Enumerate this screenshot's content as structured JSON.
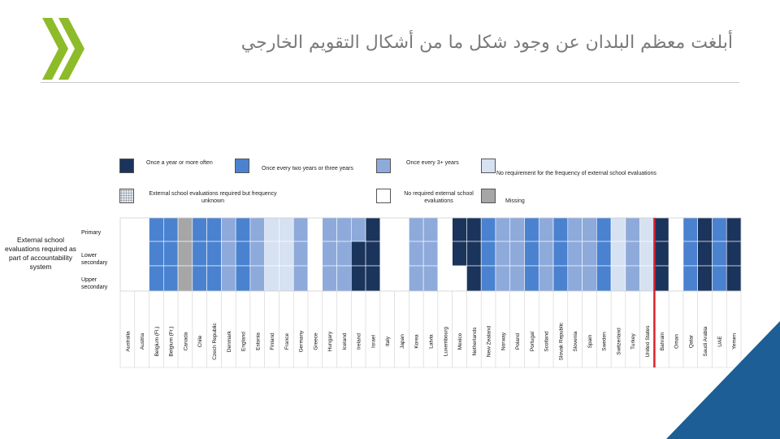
{
  "title": "أبلغت معظم البلدان عن وجود شكل ما من أشكال التقويم الخارجي",
  "colors": {
    "annual": "#1b345c",
    "two_three_years": "#4a82d0",
    "three_plus": "#8eaadb",
    "no_requirement": "#d6e1f2",
    "unknown": "#c8ccd4",
    "no_evaluation": "#ffffff",
    "missing": "#a6a6a6",
    "highlight_line": "#d9232e",
    "brand_green": "#8dbb2a",
    "brand_blue": "#1c5e95"
  },
  "legend": [
    {
      "key": "annual",
      "label": "Once a year or more often"
    },
    {
      "key": "two_three_years",
      "label": "Once every two years or three years"
    },
    {
      "key": "three_plus",
      "label": "Once every 3+ years"
    },
    {
      "key": "no_requirement",
      "label": "No requirement for the frequency of external school evaluations"
    },
    {
      "key": "unknown",
      "label": "External school evaluations required but frequency unknown"
    },
    {
      "key": "no_evaluation",
      "label": "No required external school evaluations"
    },
    {
      "key": "missing",
      "label": "Missing"
    }
  ],
  "side_label": "External school evaluations required as part of accountability system",
  "chart_data": {
    "type": "heatmap",
    "rows": [
      "Primary",
      "Lower secondary",
      "Upper secondary"
    ],
    "columns": [
      "Australia",
      "Austria",
      "Belgium (Fl.)",
      "Belgium (Fr.)",
      "Canada",
      "Chile",
      "Czech Republic",
      "Denmark",
      "England",
      "Estonia",
      "Finland",
      "France",
      "Germany",
      "Greece",
      "Hungary",
      "Iceland",
      "Ireland",
      "Israel",
      "Italy",
      "Japan",
      "Korea",
      "Latvia",
      "Luxembourg",
      "Mexico",
      "Netherlands",
      "New Zealand",
      "Norway",
      "Poland",
      "Portugal",
      "Scotland",
      "Slovak Republic",
      "Slovenia",
      "Spain",
      "Sweden",
      "Switzerland",
      "Turkey",
      "United States",
      "Bahrain",
      "Oman",
      "Qatar",
      "Saudi Arabia",
      "UAE",
      "Yemen"
    ],
    "values": [
      [
        "no_evaluation",
        "no_evaluation",
        "two_three_years",
        "two_three_years",
        "missing",
        "two_three_years",
        "two_three_years",
        "three_plus",
        "two_three_years",
        "three_plus",
        "no_requirement",
        "no_requirement",
        "three_plus",
        "no_evaluation",
        "three_plus",
        "three_plus",
        "three_plus",
        "annual",
        "no_evaluation",
        "no_evaluation",
        "three_plus",
        "three_plus",
        "no_evaluation",
        "annual",
        "annual",
        "two_three_years",
        "three_plus",
        "three_plus",
        "two_three_years",
        "three_plus",
        "two_three_years",
        "three_plus",
        "three_plus",
        "two_three_years",
        "no_requirement",
        "three_plus",
        "no_requirement",
        "annual",
        "no_evaluation",
        "two_three_years",
        "annual",
        "two_three_years",
        "annual"
      ],
      [
        "no_evaluation",
        "no_evaluation",
        "two_three_years",
        "two_three_years",
        "missing",
        "two_three_years",
        "two_three_years",
        "three_plus",
        "two_three_years",
        "three_plus",
        "no_requirement",
        "no_requirement",
        "three_plus",
        "no_evaluation",
        "three_plus",
        "three_plus",
        "annual",
        "annual",
        "no_evaluation",
        "no_evaluation",
        "three_plus",
        "three_plus",
        "no_evaluation",
        "annual",
        "annual",
        "two_three_years",
        "three_plus",
        "three_plus",
        "two_three_years",
        "three_plus",
        "two_three_years",
        "three_plus",
        "three_plus",
        "two_three_years",
        "no_requirement",
        "three_plus",
        "no_requirement",
        "annual",
        "no_evaluation",
        "two_three_years",
        "annual",
        "two_three_years",
        "annual"
      ],
      [
        "no_evaluation",
        "no_evaluation",
        "two_three_years",
        "two_three_years",
        "missing",
        "two_three_years",
        "two_three_years",
        "three_plus",
        "two_three_years",
        "three_plus",
        "no_requirement",
        "no_requirement",
        "three_plus",
        "no_evaluation",
        "three_plus",
        "three_plus",
        "annual",
        "annual",
        "no_evaluation",
        "no_evaluation",
        "three_plus",
        "three_plus",
        "no_evaluation",
        "no_evaluation",
        "annual",
        "two_three_years",
        "three_plus",
        "three_plus",
        "two_three_years",
        "three_plus",
        "two_three_years",
        "three_plus",
        "three_plus",
        "two_three_years",
        "no_requirement",
        "three_plus",
        "no_requirement",
        "annual",
        "no_evaluation",
        "two_three_years",
        "annual",
        "two_three_years",
        "annual"
      ]
    ],
    "highlight_after": "United States"
  }
}
